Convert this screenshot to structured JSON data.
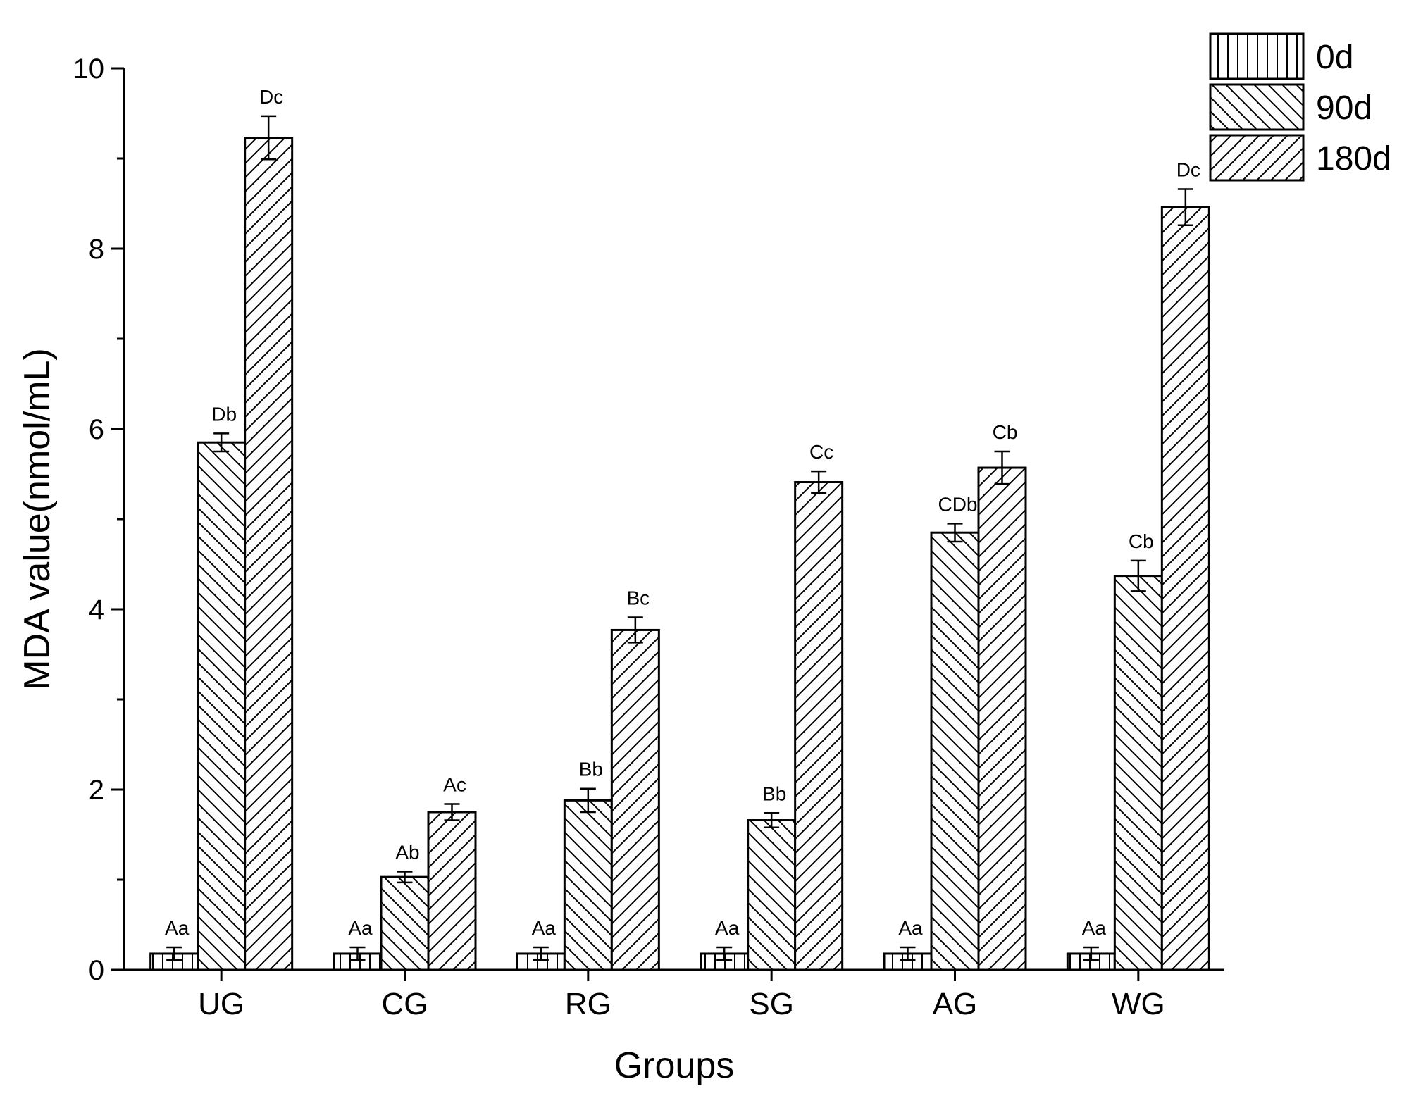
{
  "chart_data": {
    "type": "bar",
    "xlabel": "Groups",
    "ylabel": "MDA value(nmol/mL)",
    "ylim": [
      0,
      10
    ],
    "yticks": [
      "0",
      "2",
      "4",
      "6",
      "8",
      "10"
    ],
    "categories": [
      "UG",
      "CG",
      "RG",
      "SG",
      "AG",
      "WG"
    ],
    "legend_position": "top-right",
    "grid": false,
    "series": [
      {
        "name": "0d",
        "pattern": "vertical",
        "values": [
          0.18,
          0.18,
          0.18,
          0.18,
          0.18,
          0.18
        ],
        "errors": [
          0.07,
          0.07,
          0.07,
          0.07,
          0.07,
          0.07
        ],
        "labels": [
          "Aa",
          "Aa",
          "Aa",
          "Aa",
          "Aa",
          "Aa"
        ]
      },
      {
        "name": "90d",
        "pattern": "backslash",
        "values": [
          5.85,
          1.03,
          1.88,
          1.66,
          4.85,
          4.37
        ],
        "errors": [
          0.1,
          0.06,
          0.13,
          0.08,
          0.1,
          0.17
        ],
        "labels": [
          "Db",
          "Ab",
          "Bb",
          "Bb",
          "CDb",
          "Cb"
        ]
      },
      {
        "name": "180d",
        "pattern": "slash",
        "values": [
          9.23,
          1.75,
          3.77,
          5.41,
          5.57,
          8.46
        ],
        "errors": [
          0.24,
          0.09,
          0.14,
          0.12,
          0.18,
          0.2
        ],
        "labels": [
          "Dc",
          "Ac",
          "Bc",
          "Cc",
          "Cb",
          "Dc"
        ]
      }
    ],
    "colors": {
      "bar_fill": "#ffffff",
      "bar_stroke": "#000000",
      "hatch": "#000000"
    }
  }
}
